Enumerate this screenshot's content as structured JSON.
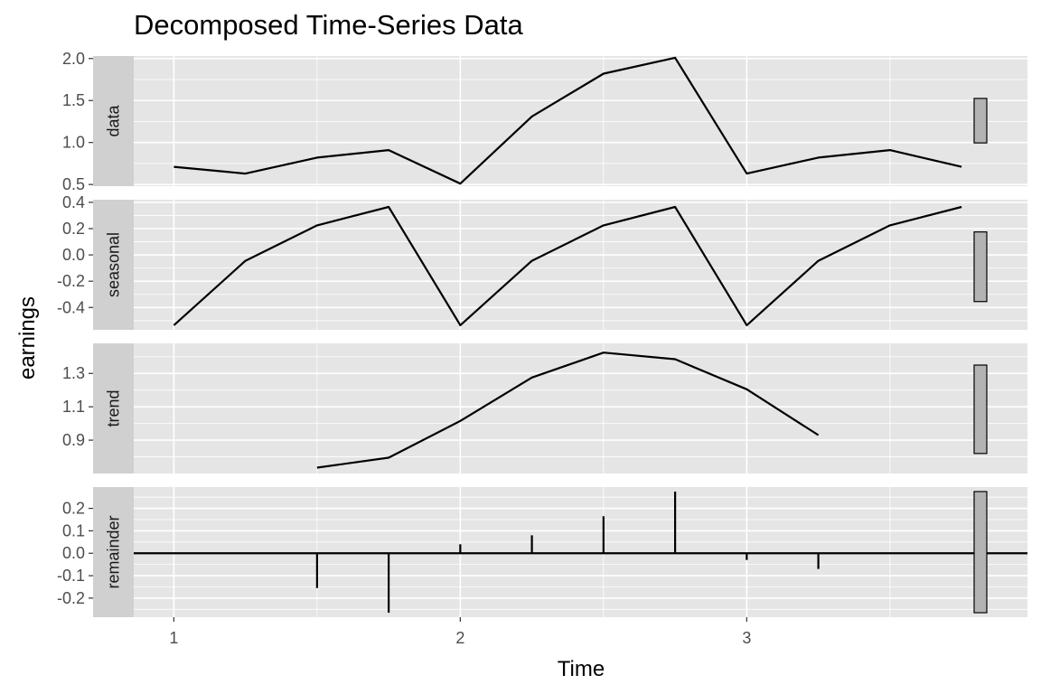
{
  "chart_data": {
    "type": "line",
    "title": "Decomposed Time-Series Data",
    "xlabel": "Time",
    "ylabel": "earnings",
    "xlim": [
      0.86,
      3.98
    ],
    "x_ticks": [
      1,
      2,
      3
    ],
    "grid": true,
    "legend": "none",
    "colors": {
      "panel_bg": "#e5e5e5",
      "grid": "#ffffff",
      "strip_bg": "#d0d0d0",
      "line": "#000000",
      "range_bar": "#b3b3b3"
    },
    "x": [
      1,
      1.25,
      1.5,
      1.75,
      2,
      2.25,
      2.5,
      2.75,
      3,
      3.25,
      3.5,
      3.75
    ],
    "panels": [
      {
        "name": "data",
        "geom": "line",
        "ylim": [
          0.48,
          2.03
        ],
        "y_ticks": [
          0.5,
          1.0,
          1.5,
          2.0
        ],
        "y_tick_labels": [
          "0.5",
          "1.0",
          "1.5",
          "2.0"
        ],
        "values": [
          0.71,
          0.63,
          0.82,
          0.91,
          0.51,
          1.31,
          1.82,
          2.01,
          0.63,
          0.82,
          0.91,
          0.71
        ],
        "range_bar": [
          0.995,
          1.525
        ]
      },
      {
        "name": "seasonal",
        "geom": "line",
        "ylim": [
          -0.57,
          0.42
        ],
        "y_ticks": [
          -0.4,
          -0.2,
          0.0,
          0.2,
          0.4
        ],
        "y_tick_labels": [
          "-0.4",
          "-0.2",
          "0.0",
          "0.2",
          "0.4"
        ],
        "values": [
          -0.535,
          -0.045,
          0.225,
          0.365,
          -0.535,
          -0.045,
          0.225,
          0.365,
          -0.535,
          -0.045,
          0.225,
          0.365
        ],
        "range_bar": [
          -0.355,
          0.175
        ]
      },
      {
        "name": "trend",
        "geom": "line",
        "ylim": [
          0.7,
          1.48
        ],
        "y_ticks": [
          0.9,
          1.1,
          1.3
        ],
        "y_tick_labels": [
          "0.9",
          "1.1",
          "1.3"
        ],
        "values": [
          null,
          null,
          0.735,
          0.795,
          1.015,
          1.275,
          1.425,
          1.385,
          1.205,
          0.93,
          null,
          null
        ],
        "range_bar": [
          0.82,
          1.35
        ]
      },
      {
        "name": "remainder",
        "geom": "bar",
        "ylim": [
          -0.285,
          0.295
        ],
        "y_ticks": [
          -0.2,
          -0.1,
          0.0,
          0.1,
          0.2
        ],
        "y_tick_labels": [
          "-0.2",
          "-0.1",
          "0.0",
          "0.1",
          "0.2"
        ],
        "values": [
          null,
          null,
          -0.155,
          -0.265,
          0.04,
          0.08,
          0.165,
          0.275,
          -0.03,
          -0.07,
          null,
          null
        ],
        "range_bar": [
          -0.265,
          0.275
        ]
      }
    ]
  }
}
